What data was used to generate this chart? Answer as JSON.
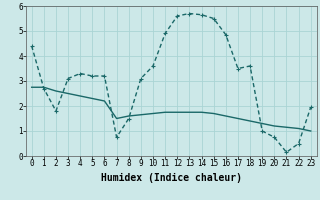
{
  "background_color": "#cce8e8",
  "grid_color": "#aad4d4",
  "line_color": "#1a6868",
  "x_labels": [
    "0",
    "1",
    "2",
    "3",
    "4",
    "5",
    "6",
    "7",
    "8",
    "9",
    "10",
    "11",
    "12",
    "13",
    "14",
    "15",
    "16",
    "17",
    "18",
    "19",
    "20",
    "21",
    "22",
    "23"
  ],
  "xlabel": "Humidex (Indice chaleur)",
  "ylim": [
    0,
    6
  ],
  "yticks": [
    0,
    1,
    2,
    3,
    4,
    5,
    6
  ],
  "series1_x": [
    0,
    1,
    2,
    3,
    4,
    5,
    6,
    7,
    8,
    9,
    10,
    11,
    12,
    13,
    14,
    15,
    16,
    17,
    18,
    19,
    20,
    21,
    22,
    23
  ],
  "series1_y": [
    4.4,
    2.7,
    1.8,
    3.1,
    3.3,
    3.2,
    3.2,
    0.75,
    1.5,
    3.1,
    3.6,
    4.9,
    5.6,
    5.7,
    5.65,
    5.5,
    4.85,
    3.5,
    3.6,
    1.0,
    0.75,
    0.15,
    0.5,
    1.95
  ],
  "series2_x": [
    0,
    1,
    2,
    3,
    4,
    5,
    6,
    7,
    8,
    9,
    10,
    11,
    12,
    13,
    14,
    15,
    16,
    17,
    18,
    19,
    20,
    21,
    22,
    23
  ],
  "series2_y": [
    2.75,
    2.75,
    2.6,
    2.5,
    2.4,
    2.3,
    2.2,
    1.5,
    1.6,
    1.65,
    1.7,
    1.75,
    1.75,
    1.75,
    1.75,
    1.7,
    1.6,
    1.5,
    1.4,
    1.3,
    1.2,
    1.15,
    1.1,
    1.0
  ],
  "marker": "+",
  "markersize": 3.5,
  "linewidth": 1.0,
  "xlabel_fontsize": 7,
  "tick_fontsize": 5.5
}
